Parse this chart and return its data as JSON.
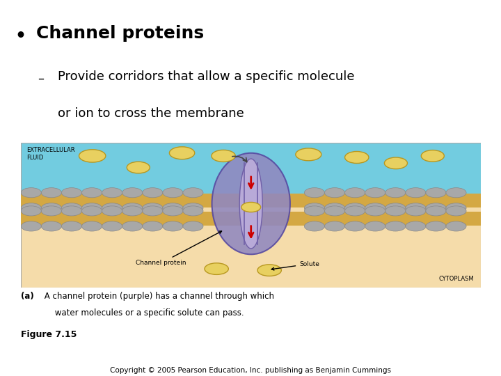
{
  "title": "Channel proteins",
  "subtitle_line1": "Provide corridors that allow a specific molecule",
  "subtitle_line2": "or ion to cross the membrane",
  "bg_color": "#ffffff",
  "top_bar_color": "#2aacac",
  "bottom_bar_color": "#2aacac",
  "fig_caption_bold": "(a)",
  "fig_caption_text": " A channel protein (purple) has a channel through which",
  "fig_caption_line2": "     water molecules or a specific solute can pass.",
  "fig_label": "Figure 7.15",
  "copyright": "Copyright © 2005 Pearson Education, Inc. publishing as Benjamin Cummings",
  "diagram": {
    "extracellular_color": "#72cce0",
    "membrane_color": "#d4a843",
    "cytoplasm_color": "#f5dcaa",
    "protein_color": "#9088c0",
    "channel_inner_color": "#b8aad8",
    "channel_line_color": "#7060a8",
    "solute_color": "#e8d060",
    "solute_outline": "#b89820",
    "head_color": "#a8a8a8",
    "head_outline": "#888888",
    "label_extracellular": "EXTRACELLULAR\nFLUID",
    "label_cytoplasm": "CYTOPLASM",
    "label_channel": "Channel protein",
    "label_solute": "Solute",
    "arrow_color": "#cc0000",
    "border_color": "#aaaaaa"
  }
}
